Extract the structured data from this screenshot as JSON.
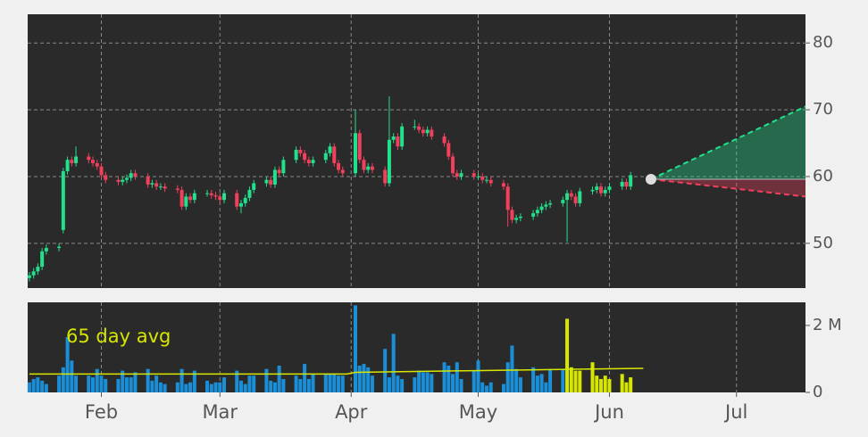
{
  "chart_data": [
    {
      "type": "candlestick",
      "up_color": "#22e08c",
      "down_color": "#f2405c",
      "xlim": [
        14.6,
        198.3
      ],
      "xticks": [
        {
          "value": 32,
          "label": "Feb"
        },
        {
          "value": 60,
          "label": "Mar"
        },
        {
          "value": 91,
          "label": "Apr"
        },
        {
          "value": 121,
          "label": "May"
        },
        {
          "value": 152,
          "label": "Jun"
        },
        {
          "value": 182,
          "label": "Jul"
        }
      ],
      "ylim": [
        43.3,
        84.3
      ],
      "yticks": [
        50,
        60,
        70,
        80
      ],
      "grid": true,
      "x": [
        15,
        16,
        17,
        18,
        19,
        22,
        23,
        24,
        25,
        26,
        29,
        30,
        31,
        32,
        33,
        36,
        37,
        38,
        39,
        40,
        43,
        44,
        45,
        46,
        47,
        50,
        51,
        52,
        53,
        54,
        57,
        58,
        59,
        60,
        61,
        64,
        65,
        66,
        67,
        68,
        71,
        72,
        73,
        74,
        75,
        78,
        79,
        80,
        81,
        82,
        85,
        86,
        87,
        88,
        89,
        92,
        93,
        94,
        95,
        96,
        99,
        100,
        101,
        102,
        103,
        106,
        107,
        108,
        109,
        110,
        113,
        114,
        115,
        116,
        117,
        120,
        121,
        122,
        123,
        124,
        127,
        128,
        129,
        130,
        131,
        134,
        135,
        136,
        137,
        138,
        141,
        142,
        143,
        144,
        145,
        148,
        149,
        150,
        151,
        152,
        155,
        156,
        157
      ],
      "open": [
        44.8,
        45.2,
        45.8,
        46.5,
        48.8,
        49.3,
        52.0,
        60.8,
        62.5,
        62.0,
        63.0,
        62.5,
        62.0,
        61.5,
        60.2,
        59.5,
        59.2,
        59.5,
        59.8,
        60.5,
        60.0,
        58.8,
        59.0,
        58.5,
        58.5,
        58.2,
        58.0,
        55.5,
        57.0,
        56.5,
        57.5,
        57.5,
        57.2,
        57.0,
        56.5,
        57.5,
        55.5,
        56.0,
        56.8,
        58.0,
        59.0,
        59.5,
        58.8,
        61.0,
        60.5,
        62.5,
        64.0,
        63.5,
        62.5,
        62.0,
        62.5,
        63.5,
        64.5,
        62.0,
        61.0,
        60.5,
        66.5,
        62.5,
        61.0,
        61.5,
        61.0,
        59.0,
        65.5,
        66.0,
        64.5,
        67.5,
        67.5,
        67.0,
        66.5,
        67.0,
        66.0,
        65.0,
        63.0,
        60.5,
        60.0,
        60.5,
        60.0,
        60.0,
        59.5,
        59.5,
        59.0,
        58.5,
        55.0,
        53.5,
        53.8,
        54.0,
        54.5,
        55.0,
        55.5,
        55.8,
        56.0,
        56.5,
        57.5,
        57.0,
        56.0,
        57.8,
        58.0,
        58.5,
        57.5,
        58.0,
        58.5,
        59.2,
        58.5
      ],
      "high": [
        45.7,
        46.3,
        47.0,
        49.3,
        49.8,
        50.0,
        61.3,
        63.0,
        63.0,
        64.5,
        63.5,
        63.0,
        62.5,
        62.0,
        60.7,
        60.0,
        60.0,
        60.3,
        61.0,
        61.0,
        60.5,
        59.5,
        59.5,
        59.0,
        59.0,
        58.7,
        58.5,
        57.5,
        57.5,
        58.0,
        58.0,
        58.0,
        57.7,
        57.5,
        58.0,
        58.0,
        56.5,
        57.3,
        58.5,
        59.5,
        60.0,
        60.0,
        61.5,
        61.5,
        63.0,
        64.5,
        64.5,
        64.0,
        63.0,
        63.0,
        64.0,
        65.0,
        65.0,
        62.5,
        61.5,
        70.0,
        67.0,
        63.0,
        62.0,
        62.0,
        61.5,
        72.0,
        66.5,
        66.5,
        68.0,
        68.5,
        68.0,
        67.5,
        67.5,
        67.5,
        66.5,
        65.5,
        63.5,
        61.0,
        61.0,
        61.0,
        60.5,
        60.5,
        60.0,
        60.0,
        59.5,
        59.0,
        55.5,
        54.3,
        54.5,
        55.0,
        55.5,
        56.0,
        56.3,
        56.5,
        57.0,
        58.0,
        58.0,
        57.5,
        58.3,
        58.5,
        59.0,
        59.0,
        58.5,
        59.0,
        59.7,
        59.7,
        60.7
      ],
      "low": [
        44.3,
        44.7,
        45.3,
        46.0,
        48.3,
        48.8,
        51.5,
        60.3,
        61.5,
        61.5,
        62.0,
        61.5,
        61.0,
        59.7,
        59.0,
        58.7,
        58.7,
        59.0,
        59.3,
        59.5,
        58.3,
        58.3,
        58.0,
        58.0,
        57.7,
        57.5,
        55.0,
        55.0,
        56.0,
        56.0,
        57.0,
        56.7,
        56.5,
        56.0,
        56.0,
        55.0,
        54.5,
        55.5,
        56.3,
        57.5,
        58.5,
        58.3,
        58.3,
        60.0,
        60.0,
        62.0,
        63.0,
        62.0,
        61.5,
        61.5,
        62.0,
        63.0,
        61.5,
        60.5,
        60.0,
        60.0,
        62.0,
        60.5,
        60.5,
        60.5,
        58.5,
        58.5,
        65.0,
        64.0,
        64.0,
        67.0,
        66.5,
        66.0,
        66.0,
        65.5,
        64.5,
        62.5,
        60.0,
        59.5,
        59.5,
        59.5,
        59.5,
        59.0,
        59.0,
        58.5,
        58.0,
        52.5,
        53.0,
        53.0,
        53.3,
        53.5,
        54.0,
        54.5,
        55.0,
        55.3,
        55.5,
        50.2,
        56.5,
        55.5,
        55.5,
        57.3,
        57.5,
        57.0,
        57.0,
        57.5,
        58.0,
        58.0,
        58.0
      ],
      "close": [
        45.2,
        45.8,
        46.5,
        48.8,
        49.3,
        49.5,
        60.8,
        62.5,
        62.0,
        63.0,
        62.5,
        62.0,
        61.5,
        60.2,
        59.5,
        59.2,
        59.5,
        59.8,
        60.5,
        60.0,
        58.8,
        59.0,
        58.5,
        58.5,
        58.2,
        58.0,
        55.5,
        57.0,
        56.5,
        57.5,
        57.5,
        57.2,
        57.0,
        56.5,
        57.5,
        55.5,
        56.0,
        56.8,
        58.0,
        59.0,
        59.5,
        58.8,
        61.0,
        60.5,
        62.5,
        64.0,
        63.5,
        62.5,
        62.0,
        62.5,
        63.5,
        64.5,
        62.0,
        61.0,
        60.5,
        66.5,
        62.5,
        61.0,
        61.5,
        61.0,
        59.0,
        65.5,
        66.0,
        64.5,
        67.5,
        67.5,
        67.0,
        66.5,
        67.0,
        66.0,
        65.0,
        63.0,
        60.5,
        60.0,
        60.5,
        60.0,
        60.0,
        59.5,
        59.5,
        59.0,
        58.5,
        55.0,
        53.5,
        53.8,
        54.0,
        54.5,
        55.0,
        55.5,
        55.8,
        56.0,
        56.5,
        57.5,
        57.0,
        56.0,
        57.8,
        58.0,
        58.5,
        57.5,
        58.0,
        58.5,
        59.2,
        58.5,
        60.2
      ],
      "forecast": {
        "x": [
          161.8,
          198.3
        ],
        "mid": [
          59.6,
          59.6
        ],
        "upper": [
          59.6,
          70.5
        ],
        "lower": [
          59.6,
          57.0
        ],
        "up_color": "#22e08c",
        "down_color": "#f2405c"
      }
    },
    {
      "type": "bar",
      "ylim": [
        0,
        2.69
      ],
      "yticks": [
        0,
        {
          "value": 2,
          "label": "2 M"
        }
      ],
      "series": [
        {
          "color": "#1a8fd8",
          "x": [
            15,
            16,
            17,
            18,
            19,
            22,
            23,
            24,
            25,
            26,
            29,
            30,
            31,
            32,
            33,
            36,
            37,
            38,
            39,
            40,
            43,
            44,
            45,
            46,
            47,
            50,
            51,
            52,
            53,
            54,
            57,
            58,
            59,
            60,
            61,
            64,
            65,
            66,
            67,
            68,
            71,
            72,
            73,
            74,
            75,
            78,
            79,
            80,
            81,
            82,
            85,
            86,
            87,
            88,
            89,
            92,
            93,
            94,
            95,
            96,
            99,
            100,
            101,
            102,
            103,
            106,
            107,
            108,
            109,
            110,
            113,
            114,
            115,
            116,
            117,
            120,
            121,
            122,
            123,
            124,
            127,
            128,
            129,
            130,
            131,
            134,
            135,
            136,
            137,
            138,
            141
          ],
          "values": [
            0.3,
            0.4,
            0.45,
            0.35,
            0.25,
            0.5,
            0.75,
            1.65,
            0.95,
            0.5,
            0.5,
            0.45,
            0.7,
            0.5,
            0.4,
            0.4,
            0.65,
            0.45,
            0.45,
            0.6,
            0.7,
            0.35,
            0.5,
            0.3,
            0.25,
            0.3,
            0.7,
            0.25,
            0.3,
            0.65,
            0.35,
            0.25,
            0.3,
            0.3,
            0.45,
            0.65,
            0.35,
            0.25,
            0.5,
            0.5,
            0.7,
            0.35,
            0.3,
            0.8,
            0.4,
            0.5,
            0.4,
            0.85,
            0.4,
            0.55,
            0.55,
            0.55,
            0.55,
            0.5,
            0.5,
            2.6,
            0.8,
            0.85,
            0.75,
            0.5,
            1.3,
            0.45,
            1.75,
            0.5,
            0.4,
            0.45,
            0.65,
            0.6,
            0.6,
            0.55,
            0.9,
            0.8,
            0.55,
            0.9,
            0.4,
            0.65,
            0.95,
            0.3,
            0.2,
            0.3,
            0.25,
            0.9,
            1.4,
            0.7,
            0.45,
            0.75,
            0.5,
            0.55,
            0.3,
            0.7,
            0.7
          ]
        },
        {
          "color": "#d7e600",
          "x": [
            142,
            143,
            144,
            145,
            148,
            149,
            150,
            151,
            152,
            155,
            156,
            157
          ],
          "values": [
            2.2,
            0.75,
            0.65,
            0.65,
            0.9,
            0.5,
            0.4,
            0.5,
            0.4,
            0.55,
            0.3,
            0.45
          ]
        }
      ],
      "average": {
        "label": "65 day avg",
        "color": "#d7e600",
        "x": [
          15,
          60,
          90,
          92,
          120,
          160
        ],
        "values": [
          0.55,
          0.55,
          0.55,
          0.6,
          0.65,
          0.72
        ]
      }
    }
  ]
}
